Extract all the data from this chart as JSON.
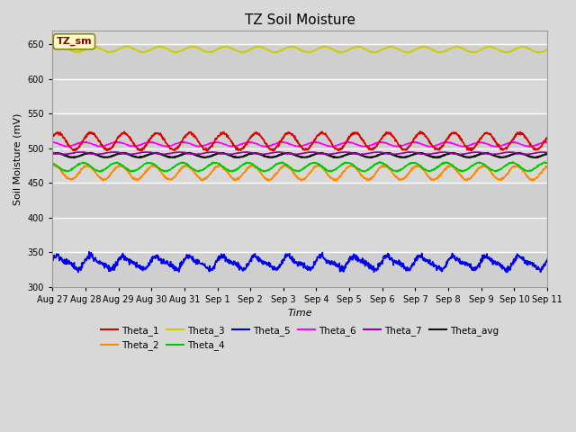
{
  "title": "TZ Soil Moisture",
  "xlabel": "Time",
  "ylabel": "Soil Moisture (mV)",
  "ylim": [
    300,
    670
  ],
  "yticks": [
    300,
    350,
    400,
    450,
    500,
    550,
    600,
    650
  ],
  "date_labels": [
    "Aug 27",
    "Aug 28",
    "Aug 29",
    "Aug 30",
    "Aug 31",
    "Sep 1",
    "Sep 2",
    "Sep 3",
    "Sep 4",
    "Sep 5",
    "Sep 6",
    "Sep 7",
    "Sep 8",
    "Sep 9",
    "Sep 10",
    "Sep 11"
  ],
  "n_points": 1500,
  "days": 15,
  "background_color": "#d8d8d8",
  "axes_bg_color": "#d8d8d8",
  "grid_color": "#ffffff",
  "series": {
    "Theta_1": {
      "color": "#dd0000",
      "base": 510,
      "amplitude": 12,
      "trend": 0.3,
      "phase": 0.5
    },
    "Theta_2": {
      "color": "#ff8800",
      "base": 465,
      "amplitude": 10,
      "trend": -0.3,
      "phase": 1.2
    },
    "Theta_3": {
      "color": "#cccc00",
      "base": 643,
      "amplitude": 4,
      "trend": -0.5,
      "phase": 0.0
    },
    "Theta_4": {
      "color": "#00cc00",
      "base": 473,
      "amplitude": 6,
      "trend": 0.3,
      "phase": 2.0
    },
    "Theta_5": {
      "color": "#0000ee",
      "base": 335,
      "amplitude": 8,
      "trend": -0.4,
      "phase": 0.3
    },
    "Theta_6": {
      "color": "#ff00ff",
      "base": 506,
      "amplitude": 3,
      "trend": -0.4,
      "phase": 1.8
    },
    "Theta_7": {
      "color": "#9900aa",
      "base": 493,
      "amplitude": 1.5,
      "trend": -0.1,
      "phase": 2.5
    },
    "Theta_avg": {
      "color": "#111111",
      "base": 490,
      "amplitude": 3,
      "trend": 0.0,
      "phase": 0.8
    }
  },
  "tz_sm_label": "TZ_sm",
  "tz_sm_color": "#880000",
  "tz_sm_bg": "#ffffcc",
  "tz_sm_border": "#888800",
  "legend_row1": [
    "Theta_1",
    "Theta_2",
    "Theta_3",
    "Theta_4",
    "Theta_5",
    "Theta_6"
  ],
  "legend_row2": [
    "Theta_7",
    "Theta_avg"
  ]
}
